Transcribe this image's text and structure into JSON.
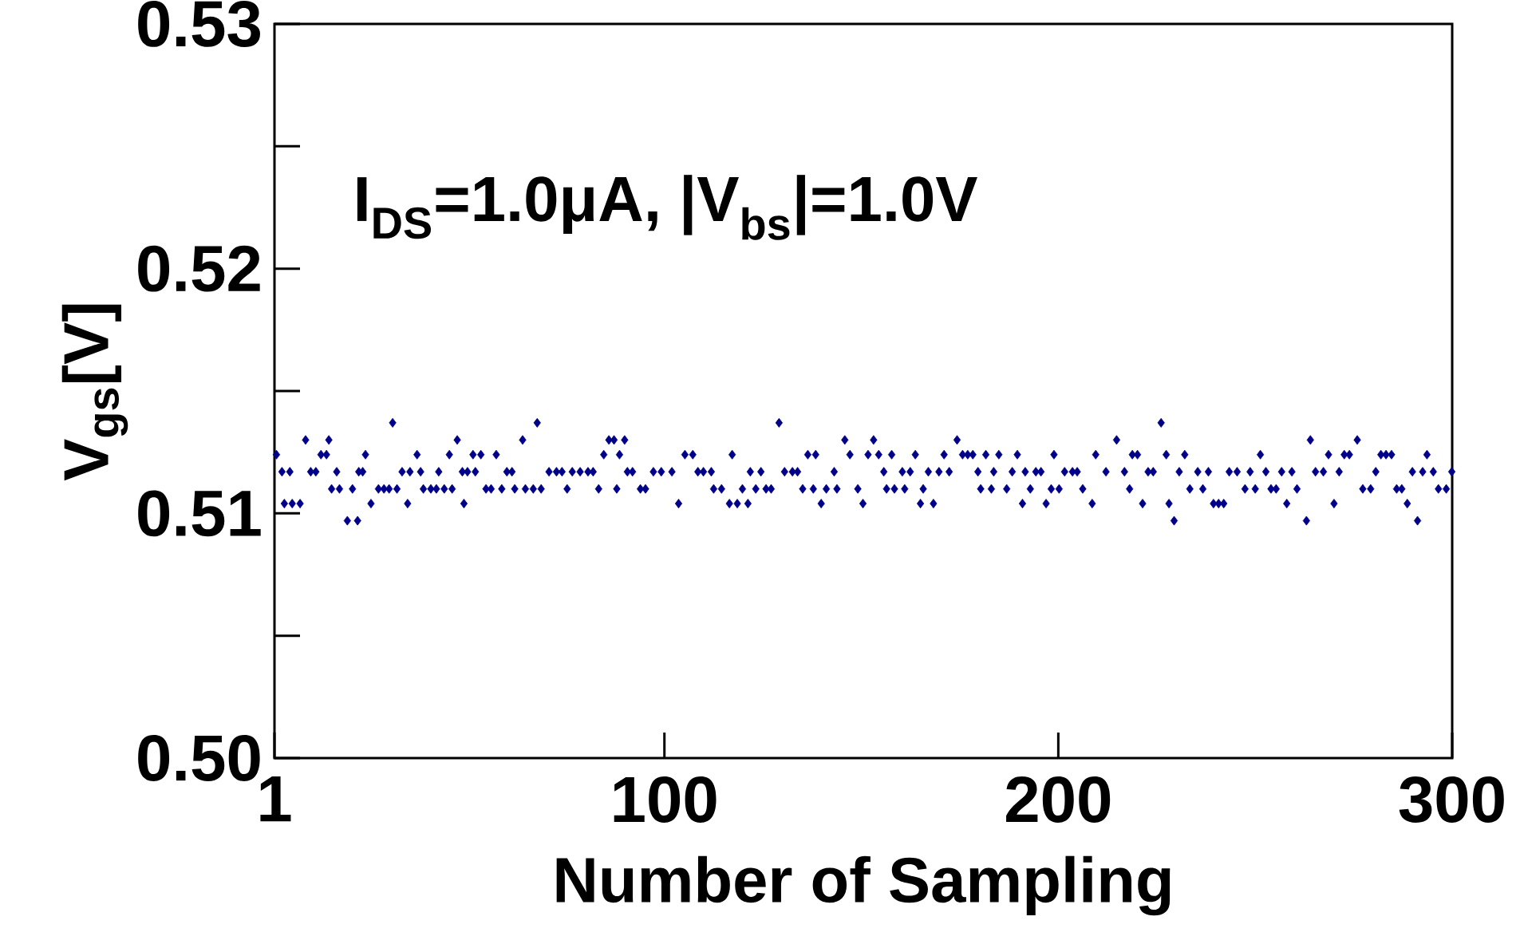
{
  "chart_data": {
    "type": "scatter",
    "xlabel": "Number of Sampling",
    "ylabel": "V$_{gs}$[V]",
    "annotations": [
      "I$_{DS}$=1.0μA, |V$_{bs}$|=1.0V"
    ],
    "xlim": [
      1,
      300
    ],
    "xticks": [
      1,
      100,
      200,
      300
    ],
    "ylim": [
      0.5,
      0.53
    ],
    "yticks": [
      {
        "value": 0.5,
        "label": "0.50"
      },
      0.51,
      0.52,
      0.53
    ],
    "marker": "diamond",
    "grid": false,
    "series": [
      {
        "color": "#00008b",
        "x": [
          1.5,
          2.9,
          3.5,
          4.9,
          5.5,
          7.5,
          8.9,
          10.2,
          11.5,
          12.8,
          14.2,
          14.8,
          15.5,
          16.8,
          17.5,
          19.5,
          20.8,
          22.1,
          22.4,
          23.4,
          24.1,
          25.5,
          27.4,
          28.8,
          30.1,
          31.0,
          32.1,
          33.4,
          34.8,
          35.4,
          37.2,
          38.1,
          38.8,
          40.7,
          42.1,
          42.7,
          44.1,
          45.4,
          46.1,
          47.4,
          48.7,
          49.1,
          50.0,
          51.4,
          52.0,
          53.4,
          54.7,
          56.0,
          57.3,
          58.7,
          60.0,
          61.3,
          62.0,
          64.0,
          64.7,
          66.7,
          67.7,
          68.7,
          70.7,
          72.6,
          74.0,
          75.3,
          76.6,
          78.6,
          80.6,
          81.9,
          83.3,
          84.6,
          85.9,
          87.2,
          87.9,
          88.6,
          89.9,
          90.6,
          91.9,
          93.9,
          95.2,
          97.2,
          99.2,
          101.9,
          103.6,
          105.2,
          107.2,
          108.5,
          109.9,
          111.9,
          112.5,
          114.5,
          116.5,
          117.2,
          118.5,
          119.8,
          121.2,
          121.8,
          123.2,
          124.5,
          125.8,
          127.1,
          129.1,
          130.5,
          132.5,
          133.8,
          135.1,
          136.4,
          137.8,
          138.4,
          139.8,
          141.1,
          143.1,
          143.8,
          145.8,
          147.1,
          149.1,
          150.4,
          151.7,
          153.1,
          154.4,
          155.7,
          156.4,
          157.7,
          158.4,
          160.4,
          161.0,
          162.4,
          163.7,
          165.0,
          165.7,
          167.0,
          168.3,
          169.7,
          171.0,
          172.3,
          174.3,
          175.7,
          177.0,
          178.3,
          179.6,
          180.3,
          181.6,
          183.0,
          183.6,
          184.9,
          186.9,
          188.3,
          189.6,
          190.9,
          191.6,
          192.9,
          194.3,
          195.6,
          196.9,
          198.2,
          198.9,
          200.2,
          201.6,
          203.6,
          204.8,
          206.2,
          208.6,
          209.5,
          212.1,
          214.8,
          216.8,
          218.1,
          218.8,
          220.1,
          221.4,
          222.8,
          224.1,
          226.1,
          227.4,
          228.1,
          229.4,
          230.7,
          232.1,
          233.4,
          235.4,
          236.7,
          238.1,
          239.4,
          240.7,
          242.0,
          243.4,
          245.4,
          247.4,
          248.7,
          250.0,
          251.3,
          252.7,
          254.0,
          255.3,
          256.7,
          258.0,
          259.3,
          260.6,
          263.0,
          264.0,
          265.3,
          267.3,
          268.6,
          270.0,
          271.3,
          272.6,
          273.9,
          275.9,
          277.3,
          279.3,
          280.6,
          281.9,
          283.2,
          284.6,
          285.9,
          287.2,
          288.6,
          289.9,
          291.2,
          292.5,
          293.6,
          295.2,
          296.5,
          298.5,
          299.9
        ],
        "values": [
          0.5124,
          0.5117,
          0.5104,
          0.5117,
          0.5104,
          0.5104,
          0.513,
          0.5117,
          0.5117,
          0.5124,
          0.5124,
          0.513,
          0.511,
          0.5117,
          0.511,
          0.5097,
          0.511,
          0.5097,
          0.5117,
          0.5117,
          0.5124,
          0.5104,
          0.511,
          0.511,
          0.511,
          0.5137,
          0.511,
          0.5117,
          0.5104,
          0.5117,
          0.5124,
          0.5117,
          0.511,
          0.511,
          0.511,
          0.5117,
          0.511,
          0.5124,
          0.511,
          0.513,
          0.5117,
          0.5104,
          0.5117,
          0.5124,
          0.5117,
          0.5124,
          0.511,
          0.511,
          0.5124,
          0.511,
          0.5117,
          0.5117,
          0.511,
          0.513,
          0.511,
          0.511,
          0.5137,
          0.511,
          0.5117,
          0.5117,
          0.5117,
          0.511,
          0.5117,
          0.5117,
          0.5117,
          0.5117,
          0.511,
          0.5124,
          0.513,
          0.513,
          0.511,
          0.5124,
          0.513,
          0.5117,
          0.5117,
          0.511,
          0.511,
          0.5117,
          0.5117,
          0.5117,
          0.5104,
          0.5124,
          0.5124,
          0.5117,
          0.5117,
          0.5117,
          0.511,
          0.511,
          0.5104,
          0.5124,
          0.5104,
          0.511,
          0.5104,
          0.5117,
          0.511,
          0.5117,
          0.511,
          0.511,
          0.5137,
          0.5117,
          0.5117,
          0.5117,
          0.511,
          0.5124,
          0.511,
          0.5124,
          0.5104,
          0.511,
          0.5117,
          0.511,
          0.513,
          0.5124,
          0.511,
          0.5104,
          0.5124,
          0.513,
          0.5124,
          0.5117,
          0.511,
          0.5124,
          0.511,
          0.5117,
          0.511,
          0.5117,
          0.5124,
          0.5104,
          0.511,
          0.5117,
          0.5104,
          0.5117,
          0.5124,
          0.5117,
          0.513,
          0.5124,
          0.5124,
          0.5124,
          0.5117,
          0.511,
          0.5124,
          0.511,
          0.5117,
          0.5124,
          0.511,
          0.5117,
          0.5124,
          0.5104,
          0.5117,
          0.511,
          0.5117,
          0.5117,
          0.5104,
          0.511,
          0.5124,
          0.511,
          0.5117,
          0.5117,
          0.5117,
          0.511,
          0.5104,
          0.5124,
          0.5117,
          0.513,
          0.5117,
          0.511,
          0.5124,
          0.5124,
          0.5104,
          0.5117,
          0.5117,
          0.5137,
          0.5124,
          0.5104,
          0.5097,
          0.5117,
          0.5124,
          0.511,
          0.5117,
          0.511,
          0.5117,
          0.5104,
          0.5104,
          0.5104,
          0.5117,
          0.5117,
          0.511,
          0.5117,
          0.511,
          0.5124,
          0.5117,
          0.511,
          0.511,
          0.5117,
          0.5104,
          0.5117,
          0.511,
          0.5097,
          0.513,
          0.5117,
          0.5117,
          0.5124,
          0.5104,
          0.5117,
          0.5124,
          0.5124,
          0.513,
          0.511,
          0.511,
          0.5117,
          0.5124,
          0.5124,
          0.5124,
          0.511,
          0.511,
          0.5104,
          0.5117,
          0.5097,
          0.5117,
          0.5124,
          0.5117,
          0.511,
          0.511,
          0.5117
        ]
      }
    ]
  }
}
